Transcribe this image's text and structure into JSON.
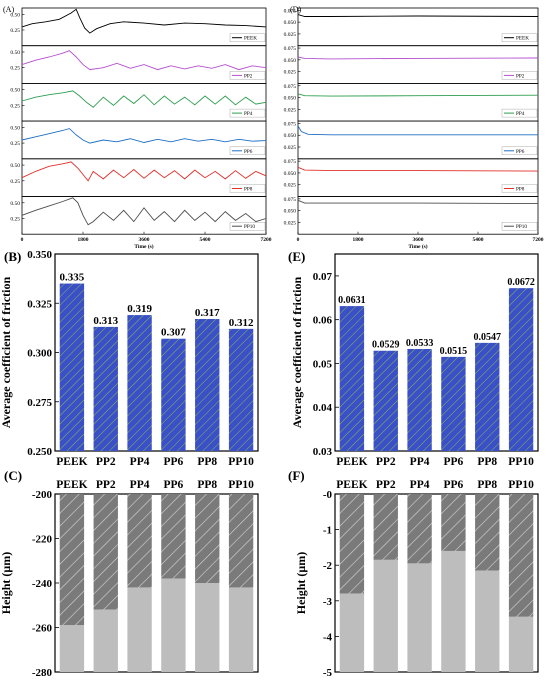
{
  "colors": {
    "bar_fill": "#3b4fc8",
    "bar_hatch": "#6fa83a",
    "height_wear": "#bdbdbd",
    "height_hatch": "#7a7a7a",
    "series": {
      "PEEK": "#000000",
      "PP2": "#b64fcf",
      "PP4": "#2e9e4f",
      "PP6": "#1f6fc4",
      "PP8": "#e0312b",
      "PP10": "#4d4d4d"
    }
  },
  "panels": {
    "a": {
      "label": "(A)"
    },
    "b": {
      "label": "(B)"
    },
    "c": {
      "label": "(C)"
    },
    "d": {
      "label": "(D)"
    },
    "e": {
      "label": "(E)"
    },
    "f": {
      "label": "(F)"
    }
  },
  "chart_data": [
    {
      "id": "A",
      "type": "line",
      "xlabel": "Time (s)",
      "xlim": [
        0,
        7200
      ],
      "xticks": [
        "0",
        "1800",
        "3600",
        "5400",
        "7200"
      ],
      "subplots": [
        {
          "name": "PEEK",
          "ylim": [
            0,
            0.6
          ],
          "yticks": [
            "0.25",
            "0.50"
          ],
          "x": [
            0,
            300,
            700,
            1100,
            1450,
            1600,
            1700,
            1850,
            2000,
            2200,
            2600,
            3000,
            3600,
            4200,
            4800,
            5400,
            6000,
            6600,
            7200
          ],
          "y": [
            0.3,
            0.35,
            0.38,
            0.42,
            0.52,
            0.58,
            0.45,
            0.28,
            0.2,
            0.27,
            0.35,
            0.38,
            0.36,
            0.33,
            0.36,
            0.35,
            0.33,
            0.32,
            0.3
          ]
        },
        {
          "name": "PP2",
          "ylim": [
            0,
            0.6
          ],
          "yticks": [
            "0.25",
            "0.50"
          ],
          "x": [
            0,
            400,
            800,
            1200,
            1400,
            1600,
            1800,
            2000,
            2400,
            2800,
            3200,
            3600,
            4000,
            4400,
            4800,
            5200,
            5600,
            6000,
            6400,
            6800,
            7200
          ],
          "y": [
            0.3,
            0.37,
            0.42,
            0.48,
            0.52,
            0.42,
            0.3,
            0.22,
            0.25,
            0.32,
            0.24,
            0.3,
            0.22,
            0.28,
            0.23,
            0.28,
            0.24,
            0.3,
            0.22,
            0.28,
            0.25
          ]
        },
        {
          "name": "PP4",
          "ylim": [
            0,
            0.6
          ],
          "yticks": [
            "0.25",
            "0.50"
          ],
          "x": [
            0,
            400,
            800,
            1200,
            1500,
            1700,
            1900,
            2100,
            2400,
            2700,
            3000,
            3300,
            3600,
            3900,
            4200,
            4500,
            4800,
            5100,
            5400,
            5700,
            6000,
            6300,
            6600,
            6900,
            7200
          ],
          "y": [
            0.32,
            0.38,
            0.42,
            0.45,
            0.48,
            0.4,
            0.3,
            0.22,
            0.38,
            0.25,
            0.4,
            0.28,
            0.42,
            0.26,
            0.4,
            0.27,
            0.38,
            0.26,
            0.4,
            0.27,
            0.4,
            0.26,
            0.38,
            0.27,
            0.3
          ]
        },
        {
          "name": "PP6",
          "ylim": [
            0,
            0.6
          ],
          "yticks": [
            "0.25",
            "0.50"
          ],
          "x": [
            0,
            400,
            800,
            1200,
            1400,
            1600,
            1800,
            2000,
            2400,
            2800,
            3200,
            3600,
            4000,
            4400,
            4800,
            5200,
            5600,
            6000,
            6400,
            6800,
            7200
          ],
          "y": [
            0.3,
            0.35,
            0.4,
            0.45,
            0.48,
            0.38,
            0.3,
            0.25,
            0.3,
            0.27,
            0.32,
            0.26,
            0.31,
            0.27,
            0.32,
            0.28,
            0.31,
            0.27,
            0.31,
            0.28,
            0.29
          ]
        },
        {
          "name": "PP8",
          "ylim": [
            0,
            0.6
          ],
          "yticks": [
            "0.25",
            "0.50"
          ],
          "x": [
            0,
            400,
            800,
            1200,
            1450,
            1650,
            1800,
            1950,
            2100,
            2400,
            2700,
            3000,
            3300,
            3600,
            3900,
            4200,
            4500,
            4800,
            5100,
            5400,
            5700,
            6000,
            6300,
            6600,
            6900,
            7200
          ],
          "y": [
            0.3,
            0.4,
            0.48,
            0.52,
            0.55,
            0.45,
            0.35,
            0.25,
            0.4,
            0.28,
            0.42,
            0.3,
            0.43,
            0.29,
            0.42,
            0.3,
            0.41,
            0.28,
            0.42,
            0.3,
            0.4,
            0.28,
            0.41,
            0.29,
            0.4,
            0.33
          ]
        },
        {
          "name": "PP10",
          "ylim": [
            0,
            0.6
          ],
          "yticks": [
            "0.25",
            "0.50"
          ],
          "x": [
            0,
            400,
            800,
            1200,
            1500,
            1650,
            1800,
            1950,
            2100,
            2400,
            2700,
            3000,
            3300,
            3600,
            3900,
            4200,
            4500,
            4800,
            5100,
            5400,
            5700,
            6000,
            6300,
            6600,
            6900,
            7200
          ],
          "y": [
            0.3,
            0.38,
            0.45,
            0.52,
            0.58,
            0.5,
            0.3,
            0.15,
            0.2,
            0.35,
            0.22,
            0.38,
            0.2,
            0.42,
            0.22,
            0.36,
            0.2,
            0.38,
            0.22,
            0.35,
            0.2,
            0.36,
            0.22,
            0.33,
            0.2,
            0.25
          ]
        }
      ]
    },
    {
      "id": "D",
      "type": "line",
      "xlabel": "Time (s)",
      "xlim": [
        0,
        7200
      ],
      "xticks": [
        "0",
        "1800",
        "3600",
        "5400",
        "7200"
      ],
      "subplots": [
        {
          "name": "PEEK",
          "ylim": [
            0,
            0.08
          ],
          "yticks": [
            "0.075",
            "0.050",
            "0.025",
            "0.000"
          ],
          "x": [
            0,
            200,
            1000,
            3600,
            7200
          ],
          "y": [
            0.066,
            0.062,
            0.062,
            0.063,
            0.062
          ]
        },
        {
          "name": "PP2",
          "ylim": [
            0,
            0.08
          ],
          "yticks": [
            "0.075",
            "0.050",
            "0.025",
            "0.000"
          ],
          "x": [
            0,
            200,
            1000,
            3600,
            7200
          ],
          "y": [
            0.056,
            0.053,
            0.052,
            0.053,
            0.054
          ]
        },
        {
          "name": "PP4",
          "ylim": [
            0,
            0.08
          ],
          "yticks": [
            "0.075",
            "0.050",
            "0.025",
            "0.000"
          ],
          "x": [
            0,
            200,
            1000,
            3600,
            7200
          ],
          "y": [
            0.058,
            0.054,
            0.053,
            0.054,
            0.055
          ]
        },
        {
          "name": "PP6",
          "ylim": [
            0,
            0.08
          ],
          "yticks": [
            "0.075",
            "0.050",
            "0.025",
            "0.000"
          ],
          "x": [
            0,
            100,
            300,
            1000,
            3600,
            7200
          ],
          "y": [
            0.07,
            0.058,
            0.052,
            0.051,
            0.051,
            0.051
          ]
        },
        {
          "name": "PP8",
          "ylim": [
            0,
            0.08
          ],
          "yticks": [
            "0.075",
            "0.050",
            "0.025",
            "0.000"
          ],
          "x": [
            0,
            200,
            1000,
            3600,
            7200
          ],
          "y": [
            0.062,
            0.056,
            0.055,
            0.055,
            0.054
          ]
        },
        {
          "name": "PP10",
          "ylim": [
            0,
            0.08
          ],
          "yticks": [
            "0.075",
            "0.050",
            "0.025",
            "0.000"
          ],
          "x": [
            0,
            200,
            1000,
            3600,
            7200
          ],
          "y": [
            0.072,
            0.066,
            0.066,
            0.066,
            0.065
          ]
        }
      ]
    },
    {
      "id": "B",
      "type": "bar",
      "ylabel": "Average coefficient of friction",
      "ylim": [
        0.25,
        0.35
      ],
      "yticks": [
        "0.250",
        "0.275",
        "0.300",
        "0.325",
        "0.350"
      ],
      "categories": [
        "PEEK",
        "PP2",
        "PP4",
        "PP6",
        "PP8",
        "PP10"
      ],
      "values": [
        0.335,
        0.313,
        0.319,
        0.307,
        0.317,
        0.312
      ],
      "value_labels": [
        "0.335",
        "0.313",
        "0.319",
        "0.307",
        "0.317",
        "0.312"
      ]
    },
    {
      "id": "E",
      "type": "bar",
      "ylabel": "Average coefficient of friction",
      "ylim": [
        0.03,
        0.075
      ],
      "yticks": [
        "0.03",
        "0.04",
        "0.05",
        "0.06",
        "0.07"
      ],
      "categories": [
        "PEEK",
        "PP2",
        "PP4",
        "PP6",
        "PP8",
        "PP10"
      ],
      "values": [
        0.0631,
        0.0529,
        0.0533,
        0.0515,
        0.0547,
        0.0672
      ],
      "value_labels": [
        "0.0631",
        "0.0529",
        "0.0533",
        "0.0515",
        "0.0547",
        "0.0672"
      ]
    },
    {
      "id": "C",
      "type": "bar",
      "ylabel": "Height (μm)",
      "ylim": [
        -280,
        -200
      ],
      "yticks": [
        "-200",
        "-220",
        "-240",
        "-260",
        "-280"
      ],
      "categories": [
        "PEEK",
        "PP2",
        "PP4",
        "PP6",
        "PP8",
        "PP10"
      ],
      "values": [
        -259,
        -252,
        -242,
        -238,
        -240,
        -242
      ]
    },
    {
      "id": "F",
      "type": "bar",
      "ylabel": "Height (μm)",
      "ylim": [
        -5,
        0
      ],
      "yticks": [
        "-0",
        "-1",
        "-2",
        "-3",
        "-4",
        "-5"
      ],
      "categories": [
        "PEEK",
        "PP2",
        "PP4",
        "PP6",
        "PP8",
        "PP10"
      ],
      "values": [
        -2.8,
        -1.85,
        -1.95,
        -1.6,
        -2.15,
        -3.45
      ]
    }
  ]
}
